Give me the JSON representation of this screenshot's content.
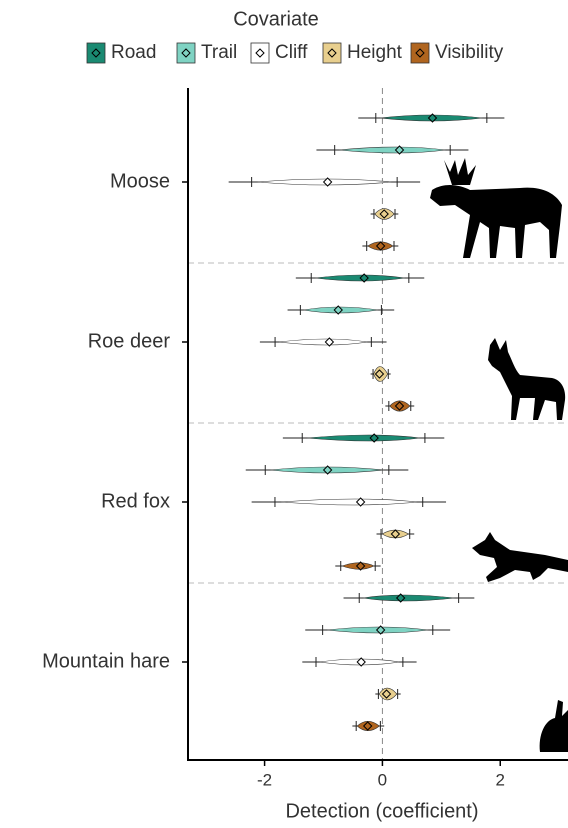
{
  "chart_data": {
    "type": "forest",
    "legend_title": "Covariate",
    "xlabel": "Detection (coefficient)",
    "categories": [
      "Moose",
      "Roe deer",
      "Red fox",
      "Mountain hare"
    ],
    "xlim": [
      -3.3,
      3.15
    ],
    "xticks": [
      -2,
      0,
      2
    ],
    "reference_line": 0,
    "series": [
      {
        "name": "Road",
        "color": "#1a8a72",
        "values": [
          0.85,
          -0.31,
          -0.14,
          0.31
        ],
        "lower": [
          -0.41,
          -1.47,
          -1.69,
          -0.66
        ],
        "upper": [
          2.07,
          0.71,
          1.05,
          1.56
        ]
      },
      {
        "name": "Trail",
        "color": "#7fd3c3",
        "values": [
          0.29,
          -0.75,
          -0.93,
          -0.03
        ],
        "lower": [
          -1.12,
          -1.61,
          -2.32,
          -1.31
        ],
        "upper": [
          1.46,
          0.2,
          0.44,
          1.15
        ]
      },
      {
        "name": "Cliff",
        "color": "#ffffff",
        "values": [
          -0.93,
          -0.9,
          -0.37,
          -0.36
        ],
        "lower": [
          -2.61,
          -2.08,
          -2.22,
          -1.36
        ],
        "upper": [
          0.64,
          0.07,
          1.08,
          0.58
        ]
      },
      {
        "name": "Height",
        "color": "#e8cf8e",
        "values": [
          0.03,
          -0.05,
          0.22,
          0.07
        ],
        "lower": [
          -0.2,
          -0.2,
          -0.1,
          -0.12
        ],
        "upper": [
          0.27,
          0.14,
          0.54,
          0.31
        ]
      },
      {
        "name": "Visibility",
        "color": "#b0651f",
        "values": [
          -0.03,
          0.29,
          -0.37,
          -0.25
        ],
        "lower": [
          -0.34,
          0.05,
          -0.8,
          -0.51
        ],
        "upper": [
          0.27,
          0.54,
          -0.03,
          0.03
        ]
      }
    ]
  }
}
